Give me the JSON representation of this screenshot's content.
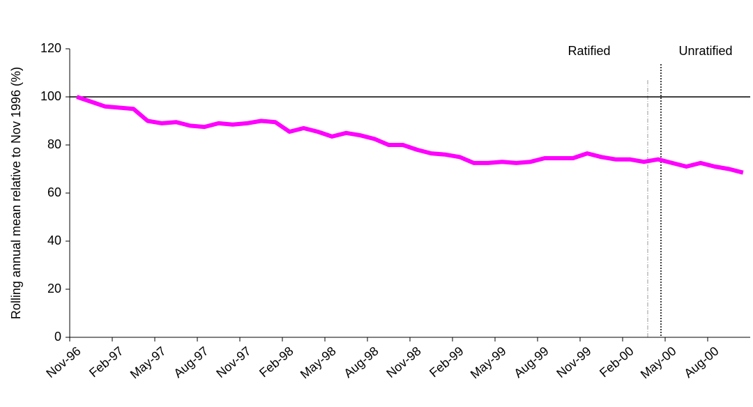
{
  "chart_data": {
    "type": "line",
    "y_label": "Rolling annual mean relative to Nov 1996 (%)",
    "categories": [
      "Nov-96",
      null,
      null,
      "Feb-97",
      null,
      null,
      "May-97",
      null,
      null,
      "Aug-97",
      null,
      null,
      "Nov-97",
      null,
      null,
      "Feb-98",
      null,
      null,
      "May-98",
      null,
      null,
      "Aug-98",
      null,
      null,
      "Nov-98",
      null,
      null,
      "Feb-99",
      null,
      null,
      "May-99",
      null,
      null,
      "Aug-99",
      null,
      null,
      "Nov-99",
      null,
      null,
      "Feb-00",
      null,
      null,
      "May-00",
      null,
      null,
      "Aug-00",
      null,
      null
    ],
    "values": [
      100,
      98,
      96,
      95.5,
      95,
      90,
      89,
      89.5,
      88,
      87.5,
      89,
      88.5,
      89,
      90,
      89.5,
      85.5,
      87,
      85.5,
      83.5,
      85,
      84,
      82.5,
      80,
      80,
      78,
      76.5,
      76,
      75,
      72.5,
      72.5,
      73,
      72.5,
      73,
      74.5,
      74.5,
      74.5,
      76.5,
      75,
      74,
      74,
      73,
      74,
      72.5,
      71,
      72.5,
      71,
      70,
      68.5
    ],
    "color": "#ff00ff",
    "ylim": [
      0,
      120
    ],
    "yticks": [
      0,
      20,
      40,
      60,
      80,
      100,
      120
    ],
    "reference_line": 100,
    "annotations": [
      "Ratified",
      "Unratified"
    ]
  }
}
